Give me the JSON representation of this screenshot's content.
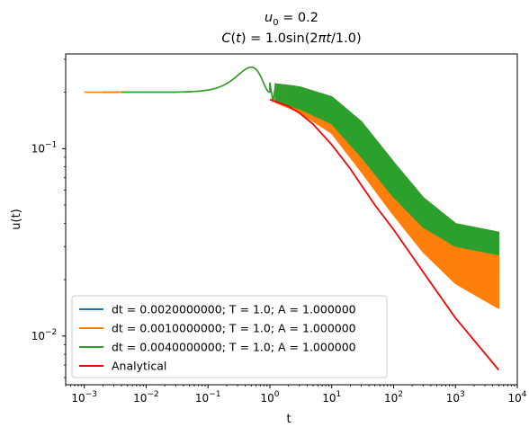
{
  "chart_data": {
    "type": "line",
    "title_line1": "u_0 = 0.2",
    "title_line2": "C(t) = 1.0sin(2πt/1.0)",
    "xlabel": "t",
    "ylabel": "u(t)",
    "xscale": "log",
    "yscale": "log",
    "xlim": [
      0.0005,
      10000
    ],
    "ylim": [
      0.0055,
      0.32
    ],
    "x_ticks": [
      {
        "mant": "10",
        "exp": "−3",
        "value": 0.001
      },
      {
        "mant": "10",
        "exp": "−2",
        "value": 0.01
      },
      {
        "mant": "10",
        "exp": "−1",
        "value": 0.1
      },
      {
        "mant": "10",
        "exp": "0",
        "value": 1
      },
      {
        "mant": "10",
        "exp": "1",
        "value": 10
      },
      {
        "mant": "10",
        "exp": "2",
        "value": 100
      },
      {
        "mant": "10",
        "exp": "3",
        "value": 1000
      },
      {
        "mant": "10",
        "exp": "4",
        "value": 10000
      }
    ],
    "y_ticks": [
      {
        "mant": "10",
        "exp": "−2",
        "value": 0.01
      },
      {
        "mant": "10",
        "exp": "−1",
        "value": 0.1
      }
    ],
    "legend_position": "lower-left",
    "series": [
      {
        "name": "dt = 0.0020000000; T = 1.0; A = 1.000000",
        "color": "#1f77b4",
        "x_start": 0.002,
        "upper": [
          [
            1,
            0.225
          ],
          [
            3,
            0.215
          ],
          [
            10,
            0.19
          ],
          [
            30,
            0.14
          ],
          [
            100,
            0.085
          ],
          [
            300,
            0.055
          ],
          [
            1000,
            0.04
          ],
          [
            5000,
            0.036
          ]
        ],
        "lower": [
          [
            1,
            0.18
          ],
          [
            3,
            0.16
          ],
          [
            10,
            0.13
          ],
          [
            30,
            0.085
          ],
          [
            100,
            0.052
          ],
          [
            300,
            0.035
          ],
          [
            1000,
            0.029
          ],
          [
            5000,
            0.022
          ]
        ]
      },
      {
        "name": "dt = 0.0010000000; T = 1.0; A = 1.000000",
        "color": "#ff7f0e",
        "x_start": 0.001,
        "upper": [
          [
            1,
            0.225
          ],
          [
            3,
            0.215
          ],
          [
            10,
            0.19
          ],
          [
            30,
            0.14
          ],
          [
            100,
            0.085
          ],
          [
            300,
            0.055
          ],
          [
            1000,
            0.04
          ],
          [
            5000,
            0.036
          ]
        ],
        "lower": [
          [
            1,
            0.18
          ],
          [
            3,
            0.155
          ],
          [
            10,
            0.12
          ],
          [
            30,
            0.075
          ],
          [
            100,
            0.044
          ],
          [
            300,
            0.028
          ],
          [
            1000,
            0.019
          ],
          [
            5000,
            0.014
          ]
        ]
      },
      {
        "name": "dt = 0.0040000000; T = 1.0; A = 1.000000",
        "color": "#2ca02c",
        "x_start": 0.004,
        "upper": [
          [
            1,
            0.225
          ],
          [
            3,
            0.215
          ],
          [
            10,
            0.19
          ],
          [
            30,
            0.14
          ],
          [
            100,
            0.085
          ],
          [
            300,
            0.055
          ],
          [
            1000,
            0.04
          ],
          [
            5000,
            0.036
          ]
        ],
        "lower": [
          [
            1,
            0.18
          ],
          [
            3,
            0.162
          ],
          [
            10,
            0.135
          ],
          [
            30,
            0.09
          ],
          [
            100,
            0.055
          ],
          [
            300,
            0.038
          ],
          [
            1000,
            0.03
          ],
          [
            5000,
            0.027
          ]
        ]
      },
      {
        "name": "Analytical",
        "color": "#ff0000",
        "points": [
          [
            1,
            0.183
          ],
          [
            2,
            0.168
          ],
          [
            3,
            0.155
          ],
          [
            5,
            0.135
          ],
          [
            10,
            0.105
          ],
          [
            20,
            0.078
          ],
          [
            30,
            0.064
          ],
          [
            50,
            0.05
          ],
          [
            100,
            0.037
          ],
          [
            300,
            0.022
          ],
          [
            1000,
            0.0125
          ],
          [
            5000,
            0.0066
          ]
        ]
      }
    ],
    "early_behavior": {
      "u0": 0.2,
      "peak_t": 0.5,
      "peak_u": 0.272,
      "osc_period": 1.0
    }
  }
}
